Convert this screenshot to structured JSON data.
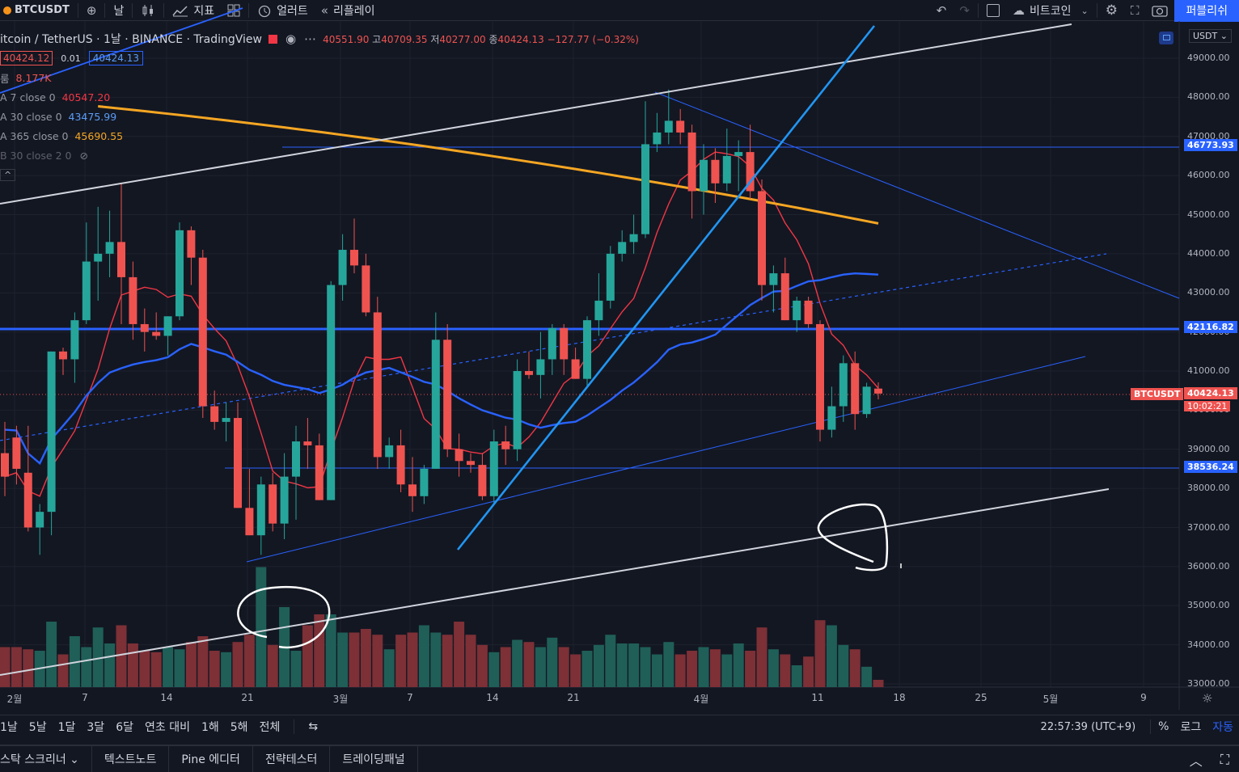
{
  "toolbar": {
    "symbol": "BTCUSDT",
    "interval": "날",
    "indicators": "지표",
    "alerts": "얼러트",
    "replay": "리플레이",
    "layout_name": "비트코인",
    "publish": "퍼블리쉬"
  },
  "legend": {
    "title": "itcoin / TetherUS · 1날 · BINANCE · TradingView",
    "ohlc": {
      "o_label": "",
      "o": "40551.90",
      "h_label": "고",
      "h": "40709.35",
      "l_label": "저",
      "l": "40277.00",
      "c_label": "종",
      "c": "40424.13",
      "change": "−127.77 (−0.32%)"
    },
    "bid": "40424.12",
    "spread": "0.01",
    "ask": "40424.13",
    "volume_label": "룸",
    "volume_value": "8.177K",
    "ma1_label": "A 7 close 0",
    "ma1_value": "40547.20",
    "ma2_label": "A 30 close 0",
    "ma2_value": "43475.99",
    "ma3_label": "A 365 close 0",
    "ma3_value": "45690.55",
    "bb_label": "B 30 close 2 0",
    "collapse": "^"
  },
  "price_axis": {
    "currency": "USDT",
    "ticks": [
      "49000.00",
      "48000.00",
      "47000.00",
      "46000.00",
      "45000.00",
      "44000.00",
      "43000.00",
      "42000.00",
      "41000.00",
      "40000.00",
      "39000.00",
      "38000.00",
      "37000.00",
      "36000.00",
      "35000.00",
      "34000.00",
      "33000.00"
    ],
    "badges": [
      {
        "value": "46773.93",
        "color": "#2962ff"
      },
      {
        "value": "42116.82",
        "color": "#2962ff"
      },
      {
        "value": "40424.13",
        "color": "#ef5350"
      },
      {
        "value": "38536.24",
        "color": "#2962ff"
      }
    ],
    "countdown": "10:02:21",
    "symbol_tag": "BTCUSDT"
  },
  "time_axis": {
    "ticks": [
      "2월",
      "7",
      "14",
      "21",
      "3월",
      "7",
      "14",
      "21",
      "4월",
      "11",
      "18",
      "25",
      "5월",
      "9"
    ]
  },
  "range_bar": {
    "items": [
      "1날",
      "5날",
      "1달",
      "3달",
      "6달",
      "연초 대비",
      "1해",
      "5해",
      "전체"
    ],
    "clock": "22:57:39 (UTC+9)",
    "percent": "%",
    "log": "로그",
    "auto": "자동"
  },
  "panel_tabs": [
    "스탁 스크리너",
    "텍스트노트",
    "Pine 에디터",
    "전략테스터",
    "트레이딩패널"
  ],
  "colors": {
    "up": "#26a69a",
    "down": "#ef5350",
    "ma7": "#f23645",
    "ma30": "#2962ff",
    "ma365": "#f5a623",
    "accent": "#2962ff"
  },
  "chart_data": {
    "type": "candlestick",
    "symbol": "BTCUSDT",
    "interval": "1D",
    "ylim": [
      33000,
      49500
    ],
    "candles": [
      {
        "o": 38900,
        "h": 39700,
        "l": 37800,
        "c": 38300
      },
      {
        "o": 39300,
        "h": 39600,
        "l": 38100,
        "c": 38500
      },
      {
        "o": 38400,
        "h": 39600,
        "l": 36900,
        "c": 37000
      },
      {
        "o": 37000,
        "h": 37600,
        "l": 36300,
        "c": 37400
      },
      {
        "o": 37400,
        "h": 41500,
        "l": 36800,
        "c": 41500
      },
      {
        "o": 41500,
        "h": 41600,
        "l": 40900,
        "c": 41300
      },
      {
        "o": 41300,
        "h": 42500,
        "l": 40700,
        "c": 42300
      },
      {
        "o": 42300,
        "h": 44800,
        "l": 42200,
        "c": 43800
      },
      {
        "o": 43800,
        "h": 45200,
        "l": 42800,
        "c": 44000
      },
      {
        "o": 44000,
        "h": 45100,
        "l": 43400,
        "c": 44300
      },
      {
        "o": 44300,
        "h": 45800,
        "l": 42200,
        "c": 43400
      },
      {
        "o": 43400,
        "h": 43800,
        "l": 41800,
        "c": 42200
      },
      {
        "o": 42200,
        "h": 42600,
        "l": 41500,
        "c": 42000
      },
      {
        "o": 42000,
        "h": 42500,
        "l": 41800,
        "c": 41900
      },
      {
        "o": 41900,
        "h": 42400,
        "l": 41400,
        "c": 42400
      },
      {
        "o": 42400,
        "h": 44800,
        "l": 42300,
        "c": 44600
      },
      {
        "o": 44600,
        "h": 44700,
        "l": 43200,
        "c": 43900
      },
      {
        "o": 43900,
        "h": 44100,
        "l": 39800,
        "c": 40100
      },
      {
        "o": 40100,
        "h": 40500,
        "l": 39500,
        "c": 39700
      },
      {
        "o": 39700,
        "h": 40200,
        "l": 39200,
        "c": 39800
      },
      {
        "o": 39800,
        "h": 40200,
        "l": 37500,
        "c": 37500
      },
      {
        "o": 37500,
        "h": 38500,
        "l": 36800,
        "c": 36800
      },
      {
        "o": 36800,
        "h": 38300,
        "l": 36300,
        "c": 38100
      },
      {
        "o": 38100,
        "h": 38400,
        "l": 36900,
        "c": 37100
      },
      {
        "o": 37100,
        "h": 38900,
        "l": 36700,
        "c": 38300
      },
      {
        "o": 38300,
        "h": 39600,
        "l": 37200,
        "c": 39200
      },
      {
        "o": 39200,
        "h": 39800,
        "l": 38500,
        "c": 39100
      },
      {
        "o": 39100,
        "h": 39400,
        "l": 37700,
        "c": 37700
      },
      {
        "o": 37700,
        "h": 43300,
        "l": 37700,
        "c": 43200
      },
      {
        "o": 43200,
        "h": 44500,
        "l": 42800,
        "c": 44100
      },
      {
        "o": 44100,
        "h": 44900,
        "l": 43500,
        "c": 43700
      },
      {
        "o": 43700,
        "h": 44000,
        "l": 42400,
        "c": 42500
      },
      {
        "o": 42500,
        "h": 42900,
        "l": 38500,
        "c": 38800
      },
      {
        "o": 38800,
        "h": 39300,
        "l": 38500,
        "c": 39100
      },
      {
        "o": 39100,
        "h": 39500,
        "l": 37900,
        "c": 38100
      },
      {
        "o": 38100,
        "h": 38800,
        "l": 37400,
        "c": 37800
      },
      {
        "o": 37800,
        "h": 38600,
        "l": 37600,
        "c": 38500
      },
      {
        "o": 38500,
        "h": 42500,
        "l": 38500,
        "c": 41800
      },
      {
        "o": 41800,
        "h": 42200,
        "l": 38800,
        "c": 39000
      },
      {
        "o": 39000,
        "h": 39400,
        "l": 38300,
        "c": 38700
      },
      {
        "o": 38700,
        "h": 38900,
        "l": 38400,
        "c": 38600
      },
      {
        "o": 38600,
        "h": 38900,
        "l": 37700,
        "c": 37800
      },
      {
        "o": 37800,
        "h": 39500,
        "l": 37600,
        "c": 39200
      },
      {
        "o": 39200,
        "h": 39600,
        "l": 38600,
        "c": 39000
      },
      {
        "o": 39000,
        "h": 41300,
        "l": 38700,
        "c": 41000
      },
      {
        "o": 41000,
        "h": 41500,
        "l": 40800,
        "c": 40900
      },
      {
        "o": 40900,
        "h": 42000,
        "l": 40300,
        "c": 41300
      },
      {
        "o": 41300,
        "h": 42200,
        "l": 40900,
        "c": 42100
      },
      {
        "o": 42100,
        "h": 42200,
        "l": 40900,
        "c": 41300
      },
      {
        "o": 41300,
        "h": 41600,
        "l": 40800,
        "c": 40800
      },
      {
        "o": 40800,
        "h": 42400,
        "l": 40600,
        "c": 42300
      },
      {
        "o": 42300,
        "h": 43500,
        "l": 41900,
        "c": 42800
      },
      {
        "o": 42800,
        "h": 44200,
        "l": 42600,
        "c": 44000
      },
      {
        "o": 44000,
        "h": 44600,
        "l": 43800,
        "c": 44300
      },
      {
        "o": 44300,
        "h": 45000,
        "l": 44000,
        "c": 44500
      },
      {
        "o": 44500,
        "h": 47900,
        "l": 44400,
        "c": 46800
      },
      {
        "o": 46800,
        "h": 47600,
        "l": 46600,
        "c": 47100
      },
      {
        "o": 47100,
        "h": 48200,
        "l": 46800,
        "c": 47400
      },
      {
        "o": 47400,
        "h": 47700,
        "l": 46800,
        "c": 47100
      },
      {
        "o": 47100,
        "h": 47300,
        "l": 44900,
        "c": 45600
      },
      {
        "o": 45600,
        "h": 46800,
        "l": 45000,
        "c": 46400
      },
      {
        "o": 46400,
        "h": 46700,
        "l": 45300,
        "c": 45800
      },
      {
        "o": 45800,
        "h": 47200,
        "l": 45600,
        "c": 46500
      },
      {
        "o": 46500,
        "h": 46900,
        "l": 45600,
        "c": 46600
      },
      {
        "o": 46600,
        "h": 47300,
        "l": 45400,
        "c": 45600
      },
      {
        "o": 45600,
        "h": 45900,
        "l": 42800,
        "c": 43200
      },
      {
        "o": 43200,
        "h": 43700,
        "l": 42500,
        "c": 43500
      },
      {
        "o": 43500,
        "h": 43900,
        "l": 42300,
        "c": 42300
      },
      {
        "o": 42300,
        "h": 42900,
        "l": 42000,
        "c": 42800
      },
      {
        "o": 42800,
        "h": 42900,
        "l": 42100,
        "c": 42200
      },
      {
        "o": 42200,
        "h": 42300,
        "l": 39200,
        "c": 39500
      },
      {
        "o": 39500,
        "h": 40600,
        "l": 39300,
        "c": 40100
      },
      {
        "o": 40100,
        "h": 41400,
        "l": 39700,
        "c": 41200
      },
      {
        "o": 41200,
        "h": 41500,
        "l": 39500,
        "c": 39900
      },
      {
        "o": 39900,
        "h": 40700,
        "l": 39800,
        "c": 40600
      },
      {
        "o": 40551.9,
        "h": 40709.35,
        "l": 40277.0,
        "c": 40424.13
      }
    ],
    "volume": [
      0.55,
      0.55,
      0.52,
      0.5,
      0.9,
      0.45,
      0.7,
      0.55,
      0.82,
      0.6,
      0.85,
      0.6,
      0.5,
      0.48,
      0.55,
      0.52,
      0.62,
      0.7,
      0.5,
      0.48,
      0.62,
      0.72,
      1.65,
      0.58,
      1.1,
      0.5,
      0.85,
      1.0,
      1.0,
      0.75,
      0.75,
      0.8,
      0.72,
      0.52,
      0.72,
      0.75,
      0.85,
      0.75,
      0.72,
      0.9,
      0.72,
      0.58,
      0.48,
      0.55,
      0.65,
      0.62,
      0.55,
      0.68,
      0.55,
      0.45,
      0.5,
      0.58,
      0.72,
      0.6,
      0.6,
      0.55,
      0.45,
      0.62,
      0.45,
      0.5,
      0.55,
      0.52,
      0.45,
      0.6,
      0.5,
      0.82,
      0.52,
      0.45,
      0.3,
      0.42,
      0.92,
      0.85,
      0.58,
      0.52,
      0.28,
      0.1
    ]
  }
}
